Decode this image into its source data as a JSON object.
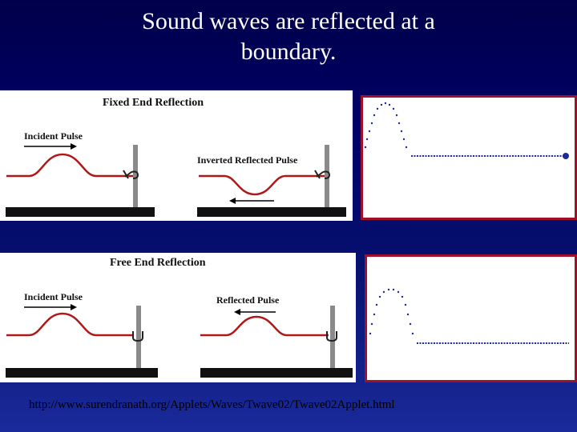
{
  "slide": {
    "title_line1": "Sound waves are reflected at a",
    "title_line2": "boundary.",
    "url": "http://www.surendranath.org/Applets/Waves/Twave02/Twave02Applet.html"
  },
  "fixed_panel": {
    "heading": "Fixed End Reflection",
    "incident_label": "Incident Pulse",
    "reflected_label": "Inverted Reflected Pulse"
  },
  "free_panel": {
    "heading": "Free End Reflection",
    "incident_label": "Incident Pulse",
    "reflected_label": "Reflected Pulse"
  },
  "colors": {
    "string": "#b01818",
    "applet_border": "#a0102a",
    "dots": "#1a2a9a"
  }
}
